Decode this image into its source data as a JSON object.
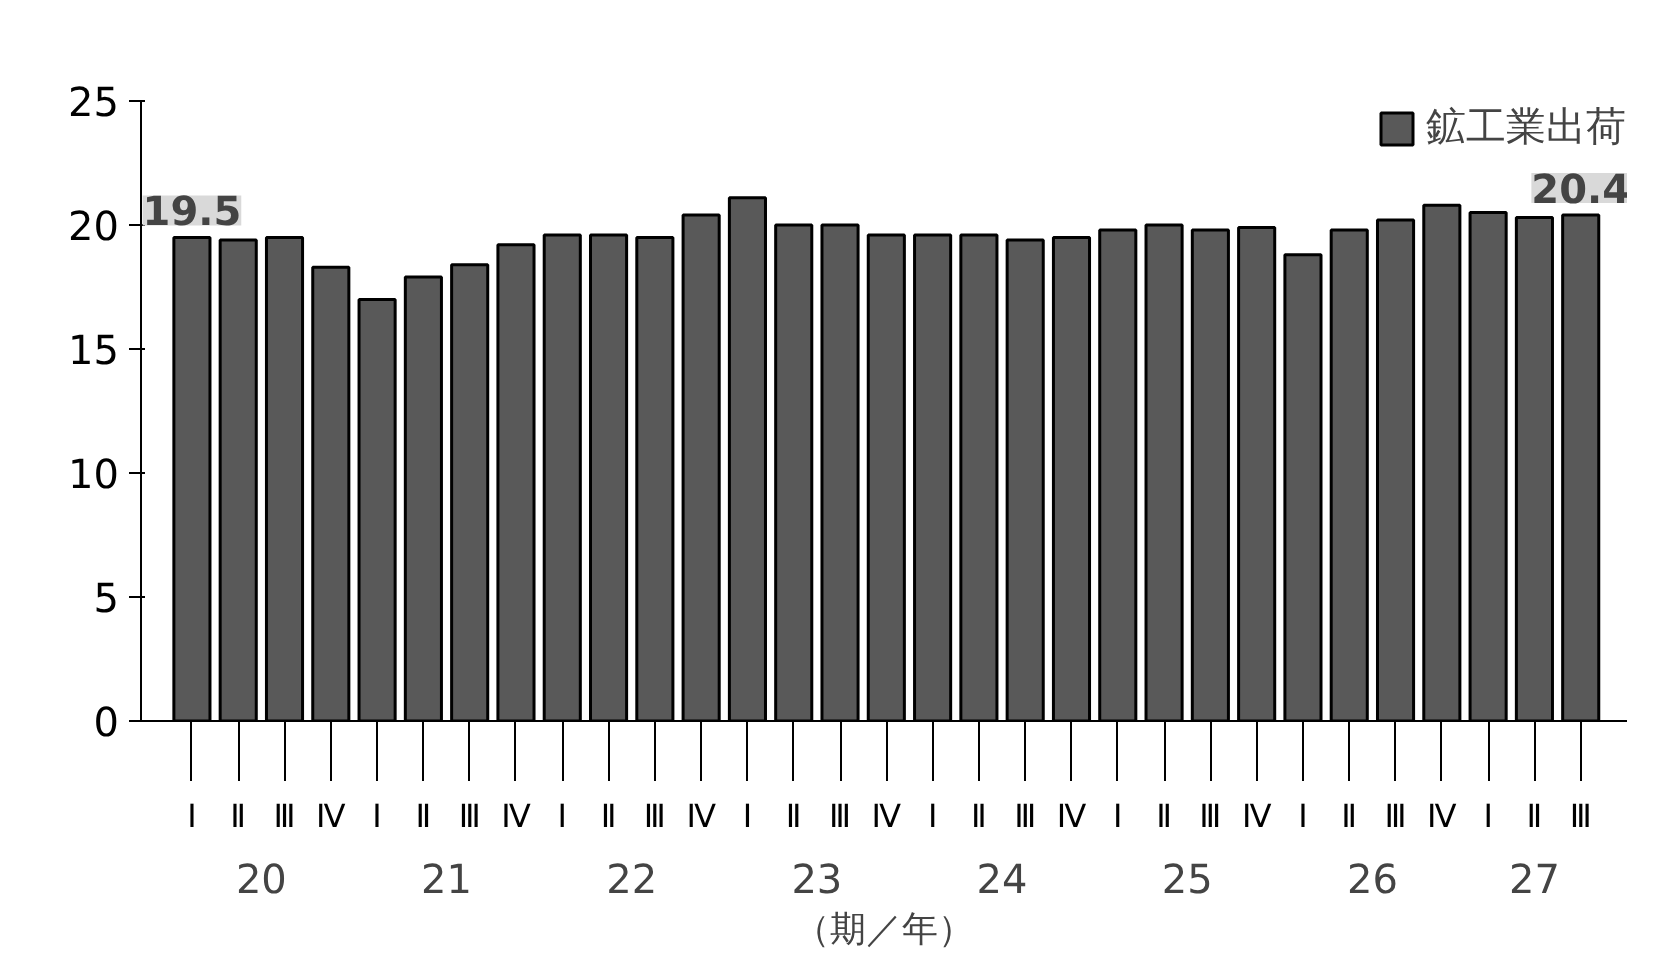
{
  "chart_data": {
    "type": "bar",
    "xlabel": "（期／年）",
    "categories": [
      "Ⅰ",
      "Ⅱ",
      "Ⅲ",
      "Ⅳ",
      "Ⅰ",
      "Ⅱ",
      "Ⅲ",
      "Ⅳ",
      "Ⅰ",
      "Ⅱ",
      "Ⅲ",
      "Ⅳ",
      "Ⅰ",
      "Ⅱ",
      "Ⅲ",
      "Ⅳ",
      "Ⅰ",
      "Ⅱ",
      "Ⅲ",
      "Ⅳ",
      "Ⅰ",
      "Ⅱ",
      "Ⅲ",
      "Ⅳ",
      "Ⅰ",
      "Ⅱ",
      "Ⅲ",
      "Ⅳ",
      "Ⅰ",
      "Ⅱ",
      "Ⅲ"
    ],
    "series": [
      {
        "name": "鉱工業出荷",
        "color": "#595959",
        "values": [
          19.5,
          19.4,
          19.5,
          18.3,
          17.0,
          17.9,
          18.4,
          19.2,
          19.6,
          19.6,
          19.5,
          20.4,
          21.1,
          20.0,
          20.0,
          19.6,
          19.6,
          19.6,
          19.4,
          19.5,
          19.8,
          20.0,
          19.8,
          19.9,
          18.8,
          19.8,
          20.2,
          20.8,
          20.5,
          20.3,
          20.4
        ],
        "value_labels": [
          "19.5",
          null,
          null,
          null,
          null,
          null,
          null,
          null,
          null,
          null,
          null,
          null,
          null,
          null,
          null,
          null,
          null,
          null,
          null,
          null,
          null,
          null,
          null,
          null,
          null,
          null,
          null,
          null,
          null,
          null,
          "20.4"
        ]
      }
    ],
    "annotations": [
      "20",
      "21",
      "22",
      "23",
      "24",
      "25",
      "26",
      "27"
    ],
    "ylim": [
      0,
      25
    ],
    "yticks": [
      0,
      5,
      10,
      15,
      20,
      25
    ],
    "grid": false,
    "legend": "top right"
  }
}
